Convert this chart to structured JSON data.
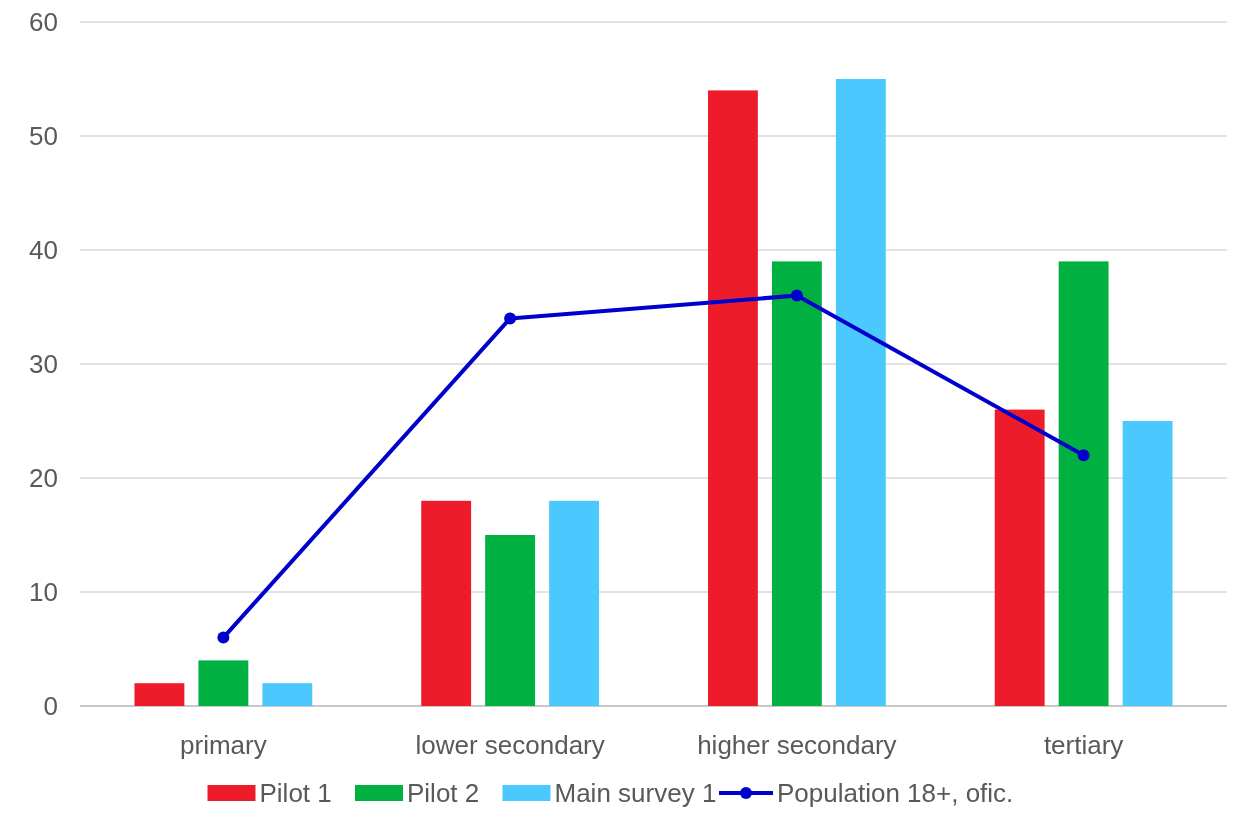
{
  "chart_data": {
    "type": "bar",
    "categories": [
      "primary",
      "lower secondary",
      "higher secondary",
      "tertiary"
    ],
    "series": [
      {
        "name": "Pilot 1",
        "color": "#ee1c2b",
        "values": [
          2,
          18,
          54,
          26
        ]
      },
      {
        "name": "Pilot 2",
        "color": "#00b040",
        "values": [
          4,
          15,
          39,
          39
        ]
      },
      {
        "name": "Main survey 1",
        "color": "#4bc8fe",
        "values": [
          2,
          18,
          55,
          25
        ]
      },
      {
        "name": "Population 18+, ofic.",
        "type": "line",
        "color": "#0000cc",
        "marker": "circle",
        "values": [
          6,
          34,
          36,
          22
        ]
      }
    ],
    "ylim": [
      0,
      60
    ],
    "yticks": [
      0,
      10,
      20,
      30,
      40,
      50,
      60
    ],
    "grid": "y",
    "legend": "bottom"
  }
}
